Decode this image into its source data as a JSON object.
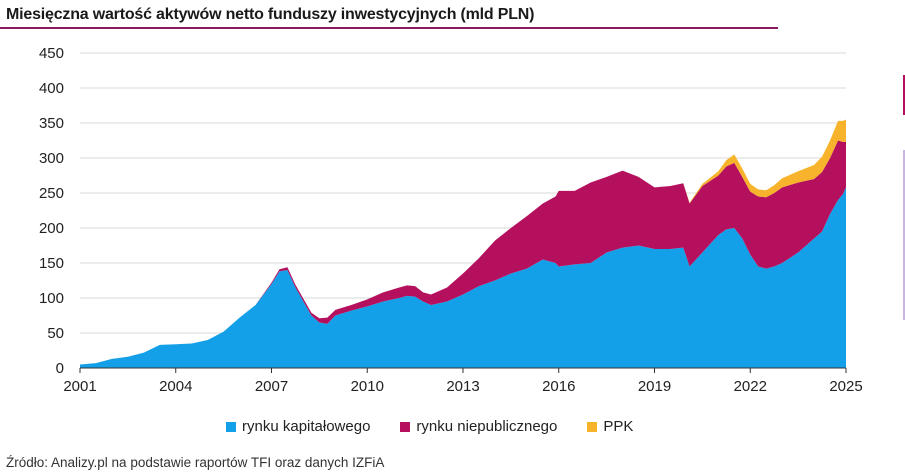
{
  "title": "Miesięczna wartość aktywów netto funduszy inwestycyjnych (mld PLN)",
  "source": "Źródło: Analizy.pl na podstawie raportów TFI oraz danych IZFiA",
  "colors": {
    "capital": "#14a0e8",
    "private": "#b5105e",
    "ppk": "#f7b32b",
    "accent": "#8b1a5a",
    "grid": "#d9d9d9"
  },
  "chart_data": {
    "type": "area",
    "stacked": true,
    "x_ticks": [
      "2001",
      "2004",
      "2007",
      "2010",
      "2013",
      "2016",
      "2019",
      "2022",
      "2025"
    ],
    "y_ticks": [
      "0",
      "50",
      "100",
      "150",
      "200",
      "250",
      "300",
      "350",
      "400",
      "450"
    ],
    "xlim": [
      2001,
      2025
    ],
    "ylim": [
      0,
      450
    ],
    "grid": "horizontal",
    "legend_position": "bottom",
    "x": [
      2001,
      2001.5,
      2002,
      2002.5,
      2003,
      2003.5,
      2004,
      2004.5,
      2005,
      2005.5,
      2006,
      2006.5,
      2007,
      2007.25,
      2007.5,
      2007.75,
      2008,
      2008.25,
      2008.5,
      2008.75,
      2009,
      2009.5,
      2010,
      2010.5,
      2011,
      2011.25,
      2011.5,
      2011.75,
      2012,
      2012.5,
      2013,
      2013.5,
      2014,
      2014.5,
      2015,
      2015.5,
      2015.9,
      2016,
      2016.5,
      2017,
      2017.5,
      2018,
      2018.5,
      2019,
      2019.5,
      2019.9,
      2020.1,
      2020.5,
      2021,
      2021.25,
      2021.5,
      2021.75,
      2022,
      2022.25,
      2022.5,
      2022.75,
      2023,
      2023.5,
      2024,
      2024.25,
      2024.5,
      2024.75,
      2024.9,
      2025
    ],
    "series": [
      {
        "name": "rynku kapitałowego",
        "values": [
          5,
          7,
          13,
          16,
          22,
          33,
          34,
          35,
          40,
          52,
          72,
          90,
          120,
          138,
          140,
          115,
          95,
          75,
          65,
          63,
          75,
          82,
          88,
          95,
          100,
          103,
          102,
          95,
          90,
          95,
          105,
          117,
          125,
          135,
          142,
          155,
          150,
          145,
          148,
          150,
          165,
          172,
          175,
          170,
          170,
          172,
          145,
          165,
          190,
          198,
          200,
          185,
          162,
          145,
          142,
          145,
          150,
          165,
          185,
          195,
          220,
          240,
          248,
          258
        ]
      },
      {
        "name": "rynku niepublicznego",
        "values": [
          0,
          0,
          0,
          0,
          0,
          0,
          0,
          0,
          0,
          0,
          0,
          0,
          2,
          3,
          4,
          4,
          4,
          4,
          6,
          9,
          8,
          8,
          10,
          13,
          15,
          15,
          15,
          13,
          15,
          20,
          30,
          40,
          57,
          65,
          75,
          80,
          95,
          108,
          105,
          115,
          108,
          110,
          98,
          88,
          90,
          92,
          90,
          95,
          85,
          90,
          93,
          88,
          90,
          100,
          102,
          105,
          108,
          100,
          85,
          85,
          80,
          85,
          75,
          65
        ]
      },
      {
        "name": "PPK",
        "values": [
          0,
          0,
          0,
          0,
          0,
          0,
          0,
          0,
          0,
          0,
          0,
          0,
          0,
          0,
          0,
          0,
          0,
          0,
          0,
          0,
          0,
          0,
          0,
          0,
          0,
          0,
          0,
          0,
          0,
          0,
          0,
          0,
          0,
          0,
          0,
          0,
          0,
          0,
          0,
          0,
          0,
          0,
          0,
          0,
          0,
          0,
          1,
          3,
          6,
          9,
          12,
          12,
          11,
          10,
          10,
          11,
          13,
          16,
          20,
          22,
          25,
          28,
          30,
          32
        ]
      }
    ]
  }
}
